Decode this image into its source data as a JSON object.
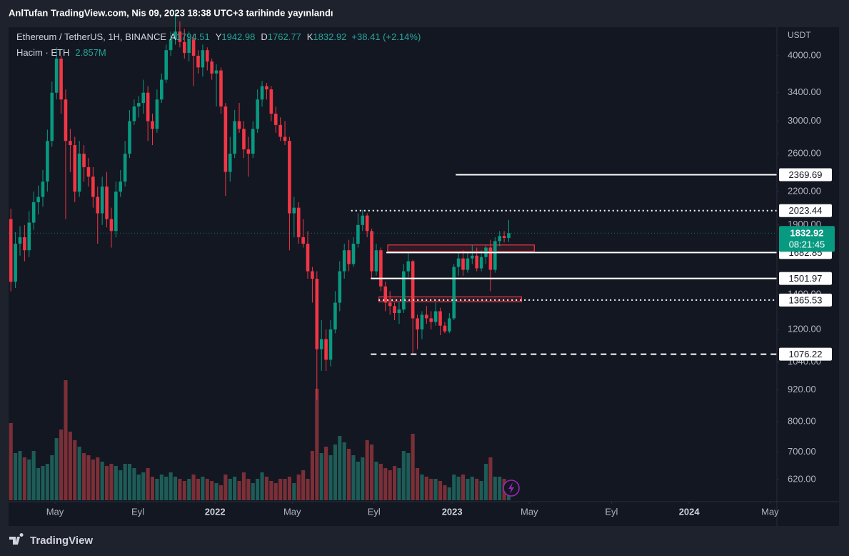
{
  "chart_data": {
    "type": "candlestick",
    "published": "AnlTufan TradingView.com, Nis 09, 2023 18:38 UTC+3 tarihinde yayınlandı",
    "symbol": "Ethereum / TetherUS, 1H, BINANCE",
    "ohlc_keys": [
      "A",
      "Y",
      "D",
      "K"
    ],
    "change": "+38.41 (+2.14%)",
    "volume_title": "Hacim · ETH",
    "volume_label": "2.857M",
    "currency": "USDT",
    "countdown": "08:21:45",
    "brand": "TradingView",
    "log_scale": true,
    "grid": false,
    "up_color": "#089981",
    "down_color": "#f23645",
    "volume_up_color": "#1d5c57",
    "volume_down_color": "#7b2f37",
    "ylim": [
      566,
      4508
    ],
    "yticks": [
      {
        "value": 4000,
        "label": "4000.00"
      },
      {
        "value": 3400,
        "label": "3400.00"
      },
      {
        "value": 3000,
        "label": "3000.00"
      },
      {
        "value": 2600,
        "label": "2600.00"
      },
      {
        "value": 2200,
        "label": "2200.00"
      },
      {
        "value": 1900,
        "label": "1900.00"
      },
      {
        "value": 1400,
        "label": "1400.00"
      },
      {
        "value": 1200,
        "label": "1200.00"
      },
      {
        "value": 1040,
        "label": "1040.00"
      },
      {
        "value": 920,
        "label": "920.00"
      },
      {
        "value": 800,
        "label": "800.00"
      },
      {
        "value": 700,
        "label": "700.00"
      },
      {
        "value": 620,
        "label": "620.00"
      }
    ],
    "xlim": [
      -0.5,
      167.7
    ],
    "xticks": [
      {
        "value": 9.66,
        "label": "May"
      },
      {
        "value": 27.8,
        "label": "Eyl"
      },
      {
        "value": 44.7,
        "label": "2022"
      },
      {
        "value": 61.6,
        "label": "May"
      },
      {
        "value": 79.5,
        "label": "Eyl"
      },
      {
        "value": 96.6,
        "label": "2023"
      },
      {
        "value": 113.5,
        "label": "May"
      },
      {
        "value": 131.5,
        "label": "Eyl"
      },
      {
        "value": 148.5,
        "label": "2024"
      },
      {
        "value": 166.2,
        "label": "May"
      }
    ],
    "vlim": [
      0,
      6
    ],
    "open": [
      1950,
      1480,
      1750,
      1800,
      1700,
      1920,
      2100,
      2150,
      2300,
      2750,
      3400,
      3950,
      3300,
      2750,
      2700,
      2200,
      2600,
      2450,
      2350,
      2150,
      2000,
      2250,
      1950,
      1850,
      2200,
      2300,
      2600,
      3000,
      3200,
      3250,
      3400,
      3000,
      2900,
      3300,
      3600,
      4100,
      4300,
      4450,
      4250,
      4050,
      4300,
      4000,
      3800,
      4100,
      3900,
      3700,
      3750,
      3200,
      2400,
      2600,
      3000,
      2900,
      2650,
      2600,
      2900,
      3300,
      3500,
      3450,
      3100,
      2950,
      2800,
      2750,
      2000,
      2050,
      1800,
      1750,
      1550,
      1500,
      1100,
      1150,
      1050,
      1200,
      1350,
      1550,
      1700,
      1600,
      1750,
      1900,
      1980,
      1850,
      1550,
      1700,
      1450,
      1350,
      1330,
      1290,
      1310,
      1550,
      1620,
      1260,
      1200,
      1280,
      1260,
      1240,
      1300,
      1220,
      1190,
      1260,
      1580,
      1640,
      1560,
      1640,
      1660,
      1570,
      1650,
      1720,
      1560,
      1770,
      1810,
      1794.51
    ],
    "high": [
      2040,
      1840,
      1890,
      1900,
      2020,
      2200,
      2260,
      2420,
      2890,
      3570,
      4150,
      4000,
      3450,
      2900,
      2800,
      2750,
      2700,
      2550,
      2450,
      2250,
      2350,
      2400,
      2050,
      2300,
      2420,
      2750,
      3150,
      3300,
      3350,
      3600,
      3500,
      3100,
      3450,
      3700,
      4200,
      4450,
      4850,
      4650,
      4500,
      4450,
      4400,
      4100,
      4200,
      4150,
      3950,
      3850,
      3800,
      3250,
      2800,
      3150,
      3250,
      3000,
      2800,
      3000,
      3450,
      3580,
      3550,
      3500,
      3200,
      3050,
      3000,
      2800,
      2150,
      2100,
      1950,
      1850,
      1580,
      1550,
      1250,
      1200,
      1250,
      1420,
      1620,
      1750,
      1780,
      1800,
      2000,
      2030,
      2000,
      1870,
      1750,
      1720,
      1480,
      1420,
      1350,
      1350,
      1600,
      1680,
      1630,
      1280,
      1300,
      1330,
      1300,
      1350,
      1320,
      1240,
      1290,
      1600,
      1680,
      1700,
      1690,
      1740,
      1720,
      1700,
      1740,
      1780,
      1800,
      1850,
      1850,
      1942.98
    ],
    "low": [
      1420,
      1440,
      1660,
      1620,
      1650,
      1860,
      1990,
      2060,
      2200,
      2680,
      3300,
      3100,
      1950,
      2400,
      2100,
      2150,
      2300,
      2250,
      2050,
      1750,
      1900,
      1880,
      1720,
      1800,
      2150,
      2250,
      2550,
      2950,
      3050,
      3100,
      2750,
      2700,
      2850,
      3250,
      3550,
      4000,
      4200,
      4150,
      3950,
      3900,
      3500,
      3700,
      3650,
      3750,
      3600,
      3200,
      3100,
      2160,
      2300,
      2550,
      2850,
      2550,
      2350,
      2550,
      2850,
      3200,
      3300,
      3000,
      2850,
      2750,
      2700,
      1700,
      1800,
      1750,
      1720,
      1500,
      1350,
      880,
      1000,
      1000,
      1020,
      1180,
      1300,
      1500,
      1550,
      1580,
      1720,
      1850,
      1800,
      1500,
      1520,
      1420,
      1300,
      1280,
      1250,
      1230,
      1290,
      1510,
      1080,
      1100,
      1150,
      1230,
      1200,
      1220,
      1170,
      1180,
      1180,
      1250,
      1520,
      1520,
      1540,
      1600,
      1550,
      1550,
      1600,
      1420,
      1540,
      1730,
      1760,
      1762.77
    ],
    "close": [
      1480,
      1750,
      1800,
      1700,
      1920,
      2100,
      2150,
      2300,
      2750,
      3400,
      3950,
      3300,
      2750,
      2700,
      2200,
      2600,
      2450,
      2350,
      2150,
      2000,
      2250,
      1950,
      1850,
      2200,
      2300,
      2600,
      3000,
      3200,
      3250,
      3400,
      3000,
      2900,
      3300,
      3600,
      4100,
      4300,
      4450,
      4250,
      4050,
      4300,
      4000,
      3800,
      4100,
      3900,
      3700,
      3750,
      3200,
      2400,
      2600,
      3000,
      2900,
      2650,
      2600,
      2900,
      3300,
      3500,
      3450,
      3100,
      2950,
      2800,
      2750,
      2000,
      2050,
      1800,
      1750,
      1550,
      1500,
      1100,
      1150,
      1050,
      1200,
      1350,
      1550,
      1700,
      1600,
      1750,
      1900,
      1980,
      1850,
      1550,
      1700,
      1450,
      1350,
      1330,
      1290,
      1310,
      1550,
      1620,
      1260,
      1200,
      1280,
      1260,
      1240,
      1300,
      1220,
      1190,
      1260,
      1580,
      1640,
      1560,
      1640,
      1660,
      1570,
      1650,
      1720,
      1560,
      1770,
      1810,
      1794.51,
      1832.92
    ],
    "volume": [
      3.6,
      2.2,
      2.3,
      2.0,
      1.9,
      2.3,
      1.5,
      1.6,
      1.7,
      2.1,
      2.9,
      3.3,
      5.6,
      3.2,
      2.8,
      2.5,
      2.2,
      2.1,
      1.9,
      2.0,
      1.8,
      1.6,
      1.7,
      1.6,
      1.4,
      1.7,
      1.7,
      1.5,
      1.2,
      1.3,
      1.5,
      1.1,
      1.0,
      1.2,
      1.1,
      1.3,
      1.1,
      1.0,
      0.9,
      1.0,
      1.2,
      1.0,
      1.1,
      1.0,
      0.9,
      0.8,
      0.7,
      1.2,
      1.0,
      1.1,
      0.9,
      1.3,
      1.0,
      0.8,
      1.0,
      1.3,
      1.1,
      0.9,
      0.8,
      1.0,
      1.0,
      1.1,
      0.8,
      1.2,
      1.4,
      1.0,
      2.3,
      5.2,
      2.2,
      2.5,
      2.1,
      2.6,
      3.0,
      2.7,
      2.4,
      2.1,
      1.8,
      2.0,
      2.8,
      2.6,
      1.8,
      1.7,
      1.5,
      1.4,
      1.6,
      1.5,
      2.3,
      2.2,
      3.1,
      1.5,
      1.2,
      1.1,
      1.0,
      1.0,
      0.9,
      0.7,
      0.6,
      1.2,
      1.1,
      1.2,
      1.0,
      1.1,
      1.0,
      0.9,
      1.7,
      2.0,
      1.1,
      1.1,
      1.0,
      0.6
    ],
    "levels": [
      {
        "value": 2369.69,
        "style": "solid",
        "from": 97.4
      },
      {
        "value": 2023.44,
        "style": "dotted",
        "from": 74.5
      },
      {
        "value": 1682.85,
        "style": "solid",
        "from": 82.2
      },
      {
        "value": 1501.97,
        "style": "solid",
        "from": 78.8
      },
      {
        "value": 1365.53,
        "style": "dotted",
        "from": 80.5
      },
      {
        "value": 1076.22,
        "style": "dashed",
        "from": 78.8
      }
    ],
    "zones": [
      {
        "from": 82.5,
        "to": 114.6,
        "low": 1690,
        "high": 1740,
        "color": "#f23645"
      },
      {
        "from": 80.6,
        "to": 111.8,
        "low": 1355,
        "high": 1385,
        "color": "#f23645"
      }
    ]
  }
}
